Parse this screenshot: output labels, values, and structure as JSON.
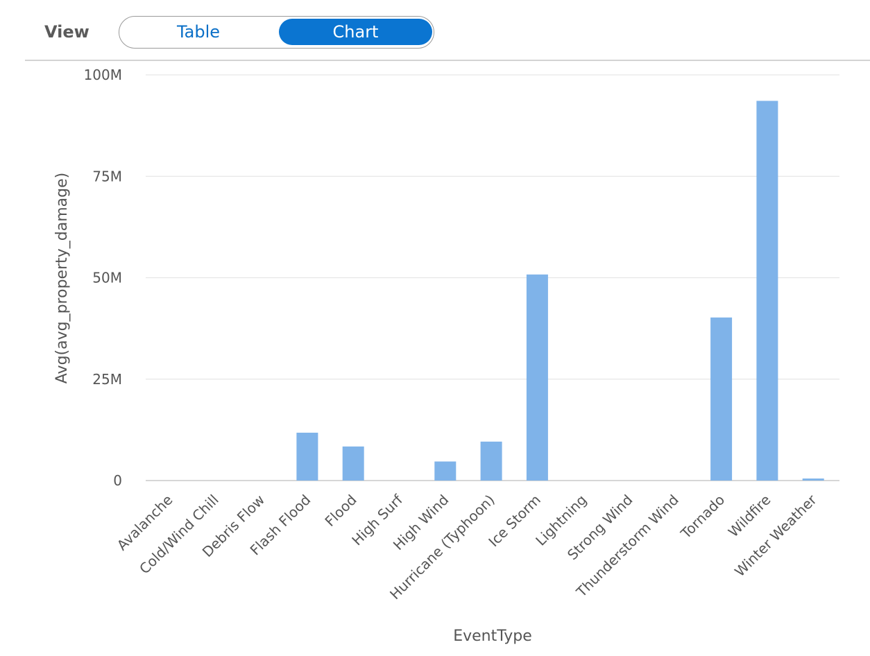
{
  "view": {
    "label": "View",
    "options": [
      "Table",
      "Chart"
    ],
    "selected": "Chart"
  },
  "chart_data": {
    "type": "bar",
    "xlabel": "EventType",
    "ylabel": "Avg(avg_property_damage)",
    "ylim": [
      0,
      100000000
    ],
    "yticks": [
      {
        "value": 0,
        "label": "0"
      },
      {
        "value": 25000000,
        "label": "25M"
      },
      {
        "value": 50000000,
        "label": "50M"
      },
      {
        "value": 75000000,
        "label": "75M"
      },
      {
        "value": 100000000,
        "label": "100M"
      }
    ],
    "grid": true,
    "bar_color": "#7fb3e9",
    "categories": [
      "Avalanche",
      "Cold/Wind Chill",
      "Debris Flow",
      "Flash Flood",
      "Flood",
      "High Surf",
      "High Wind",
      "Hurricane (Typhoon)",
      "Ice Storm",
      "Lightning",
      "Strong Wind",
      "Thunderstorm Wind",
      "Tornado",
      "Wildfire",
      "Winter Weather"
    ],
    "values": [
      0,
      0,
      0,
      11800000,
      8400000,
      0,
      4700000,
      9600000,
      50800000,
      0,
      0,
      0,
      40200000,
      93600000,
      500000
    ]
  }
}
